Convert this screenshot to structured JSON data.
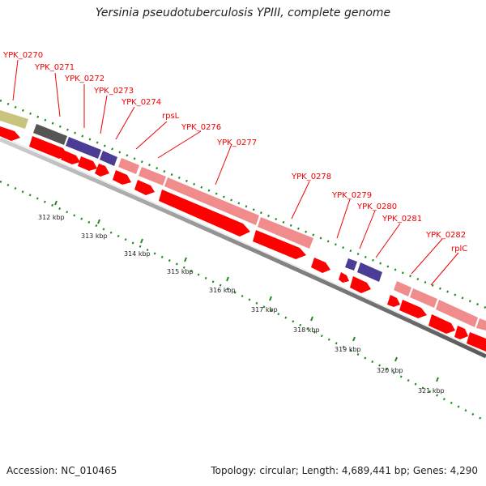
{
  "title": "Yersinia pseudotuberculosis YPIII, complete genome",
  "accession_text": "Accession: NC_010465",
  "summary_text": "Topology: circular; Length: 4,689,441 bp; Genes: 4,290",
  "gene_labels": [
    "YPK_0270",
    "YPK_0271",
    "YPK_0272",
    "YPK_0273",
    "YPK_0274",
    "rpsL",
    "YPK_0276",
    "YPK_0277",
    "YPK_0278",
    "YPK_0279",
    "YPK_0280",
    "YPK_0281",
    "YPK_0282",
    "rplC"
  ],
  "kbp_labels": [
    "312 kbp",
    "313 kbp",
    "314 kbp",
    "315 kbp",
    "316 kbp",
    "317 kbp",
    "318 kbp",
    "319 kbp",
    "320 kbp",
    "321 kbp"
  ],
  "colors": {
    "cds": "#ff0000",
    "rna": "#f08c8c",
    "gray_feature": "#555555",
    "blue_feature": "#4b3c96",
    "olive_feature": "#c8c47e",
    "dots": "#1e8c1e",
    "backbone": "#888888"
  }
}
